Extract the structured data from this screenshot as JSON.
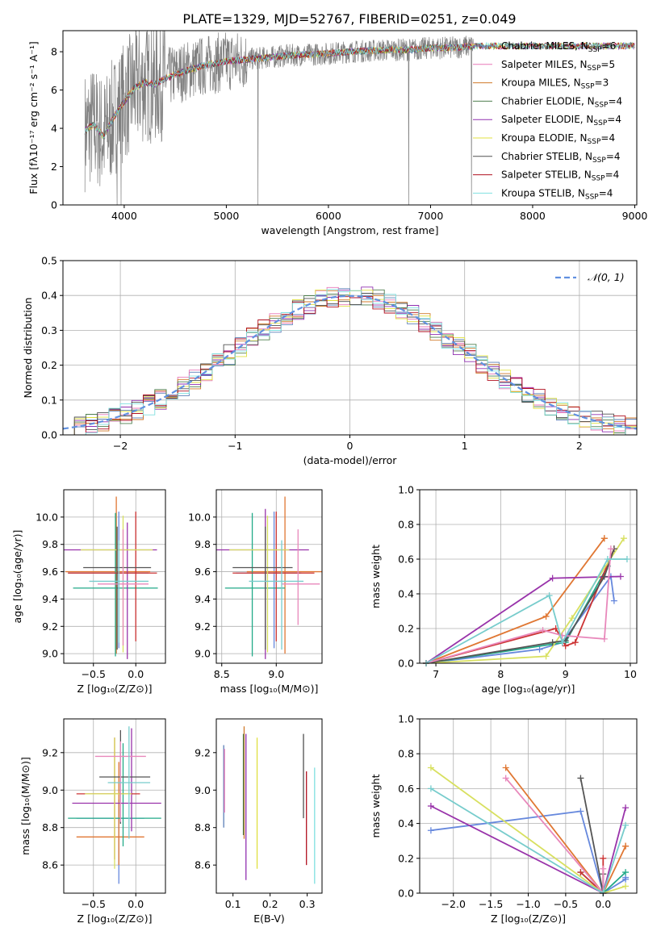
{
  "figure_title": "PLATE=1329, MJD=52767, FIBERID=0251, z=0.049",
  "colors": {
    "data": "#808080",
    "models": [
      "#5b7fb8",
      "#e878b8",
      "#d07a2a",
      "#4f7f4f",
      "#9030b0",
      "#e0e040",
      "#505050",
      "#b01020",
      "#80e0e0"
    ],
    "summary": [
      "#6688dd",
      "#e07733",
      "#22aa88",
      "#9933aa",
      "#cc3333",
      "#d8e060",
      "#555555",
      "#e888bb",
      "#77cccc"
    ],
    "normal_curve": "#6090e0"
  },
  "spectrum_legend": [
    {
      "main": "Chabrier MILES, N",
      "sub": "SSP",
      "tail": "=6"
    },
    {
      "main": "Salpeter MILES, N",
      "sub": "SSP",
      "tail": "=5"
    },
    {
      "main": "Kroupa MILES, N",
      "sub": "SSP",
      "tail": "=3"
    },
    {
      "main": "Chabrier ELODIE, N",
      "sub": "SSP",
      "tail": "=4"
    },
    {
      "main": "Salpeter ELODIE, N",
      "sub": "SSP",
      "tail": "=4"
    },
    {
      "main": "Kroupa ELODIE, N",
      "sub": "SSP",
      "tail": "=4"
    },
    {
      "main": "Chabrier STELIB, N",
      "sub": "SSP",
      "tail": "=4"
    },
    {
      "main": "Salpeter STELIB, N",
      "sub": "SSP",
      "tail": "=4"
    },
    {
      "main": "Kroupa STELIB, N",
      "sub": "SSP",
      "tail": "=4"
    }
  ],
  "chart_data": [
    {
      "id": "spectrum",
      "type": "line",
      "title": "PLATE=1329, MJD=52767, FIBERID=0251, z=0.049",
      "xlabel": "wavelength [Angstrom, rest frame]",
      "ylabel": "Flux [fλ10⁻¹⁷ erg cm⁻² s⁻¹ A⁻¹]",
      "xlim": [
        3400,
        9020
      ],
      "ylim": [
        0,
        9.1
      ],
      "xticks": [
        4000,
        5000,
        6000,
        7000,
        8000,
        9000
      ],
      "yticks": [
        0,
        2,
        4,
        6,
        8
      ],
      "legend_loc": "right",
      "continuum": {
        "x": [
          3600,
          3700,
          3800,
          3900,
          4000,
          4100,
          4200,
          4300,
          4400,
          4600,
          4800,
          5000,
          5200,
          5400,
          5600,
          5800,
          6000,
          6200,
          6400,
          6600,
          6800,
          7000,
          7200,
          7400
        ],
        "y": [
          3.8,
          4.2,
          3.6,
          4.6,
          5.4,
          6.1,
          6.4,
          6.3,
          6.6,
          7.0,
          7.3,
          7.5,
          7.6,
          7.7,
          7.8,
          7.85,
          7.9,
          8.0,
          8.05,
          8.1,
          8.1,
          8.2,
          8.2,
          8.3
        ]
      },
      "data_range": [
        3615,
        7420
      ],
      "model_range": [
        3615,
        9000
      ],
      "spikes": [
        {
          "x": 3930,
          "y": 0.0
        },
        {
          "x": 3970,
          "y": 0.0
        },
        {
          "x": 5310,
          "y": 0.0
        },
        {
          "x": 6785,
          "y": 0.0
        },
        {
          "x": 7400,
          "y": 0.0
        }
      ],
      "series": [
        {
          "name": "Chabrier MILES, N_SSP=6"
        },
        {
          "name": "Salpeter MILES, N_SSP=5"
        },
        {
          "name": "Kroupa MILES, N_SSP=3"
        },
        {
          "name": "Chabrier ELODIE, N_SSP=4"
        },
        {
          "name": "Salpeter ELODIE, N_SSP=4"
        },
        {
          "name": "Kroupa ELODIE, N_SSP=4"
        },
        {
          "name": "Chabrier STELIB, N_SSP=4"
        },
        {
          "name": "Salpeter STELIB, N_SSP=4"
        },
        {
          "name": "Kroupa STELIB, N_SSP=4"
        }
      ]
    },
    {
      "id": "residuals",
      "type": "line",
      "xlabel": "(data-model)/error",
      "ylabel": "Normed distribution",
      "xlim": [
        -2.5,
        2.5
      ],
      "ylim": [
        0,
        0.5
      ],
      "xticks": [
        -2,
        -1,
        0,
        1,
        2
      ],
      "yticks": [
        0,
        0.1,
        0.2,
        0.3,
        0.4,
        0.5
      ],
      "grid": true,
      "bin_width": 0.1,
      "legend": "𝒩(0, 1)",
      "legend_loc": "top-right"
    },
    {
      "id": "age_vs_Z",
      "type": "scatter",
      "xlabel": "Z [log₁₀(Z/Z⊙)]",
      "ylabel": "age  [log₁₀(age/yr)]",
      "xlim": [
        -0.85,
        0.35
      ],
      "ylim": [
        8.93,
        10.2
      ],
      "xticks": [
        -0.5,
        0.0
      ],
      "yticks": [
        9.0,
        9.2,
        9.4,
        9.6,
        9.8,
        10.0
      ],
      "grid": true,
      "errorbars": [
        {
          "x": -0.2,
          "y": 9.59,
          "xerr": [
            0.6,
            0.35
          ],
          "yerr": [
            0.55,
            0.45
          ]
        },
        {
          "x": -0.23,
          "y": 9.6,
          "xerr": [
            0.6,
            0.4
          ],
          "yerr": [
            0.6,
            0.55
          ]
        },
        {
          "x": -0.24,
          "y": 9.48,
          "xerr": [
            0.5,
            0.5
          ],
          "yerr": [
            0.5,
            0.55
          ]
        },
        {
          "x": -0.1,
          "y": 9.76,
          "xerr": [
            0.75,
            0.35
          ],
          "yerr": [
            0.8,
            0.2
          ]
        },
        {
          "x": 0.0,
          "y": 9.59,
          "xerr": [
            0.8,
            0.25
          ],
          "yerr": [
            0.5,
            0.45
          ]
        },
        {
          "x": -0.15,
          "y": 9.76,
          "xerr": [
            0.5,
            0.35
          ],
          "yerr": [
            0.75,
            0.25
          ]
        },
        {
          "x": -0.22,
          "y": 9.63,
          "xerr": [
            0.4,
            0.4
          ],
          "yerr": [
            0.6,
            0.3
          ]
        },
        {
          "x": -0.15,
          "y": 9.51,
          "xerr": [
            0.3,
            0.3
          ],
          "yerr": [
            0.45,
            0.4
          ]
        },
        {
          "x": -0.2,
          "y": 9.53,
          "xerr": [
            0.35,
            0.35
          ],
          "yerr": [
            0.45,
            0.3
          ]
        }
      ]
    },
    {
      "id": "age_vs_mass",
      "type": "scatter",
      "xlabel": "mass [log₁₀(M/M⊙)]",
      "xlim": [
        8.45,
        9.42
      ],
      "ylim": [
        8.93,
        10.2
      ],
      "xticks": [
        8.5,
        9.0
      ],
      "yticks": [
        9.0,
        9.2,
        9.4,
        9.6,
        9.8,
        10.0
      ],
      "grid": true,
      "errorbars": [
        {
          "x": 8.98,
          "y": 9.59,
          "xerr": [
            0.35,
            0.25
          ],
          "yerr": [
            0.55,
            0.45
          ]
        },
        {
          "x": 9.08,
          "y": 9.6,
          "xerr": [
            0.35,
            0.35
          ],
          "yerr": [
            0.6,
            0.55
          ]
        },
        {
          "x": 8.78,
          "y": 9.48,
          "xerr": [
            0.25,
            0.3
          ],
          "yerr": [
            0.5,
            0.55
          ]
        },
        {
          "x": 8.9,
          "y": 9.76,
          "xerr": [
            0.45,
            0.4
          ],
          "yerr": [
            0.8,
            0.3
          ]
        },
        {
          "x": 9.0,
          "y": 9.59,
          "xerr": [
            0.4,
            0.35
          ],
          "yerr": [
            0.5,
            0.45
          ]
        },
        {
          "x": 8.92,
          "y": 9.76,
          "xerr": [
            0.35,
            0.2
          ],
          "yerr": [
            0.75,
            0.25
          ]
        },
        {
          "x": 8.9,
          "y": 9.63,
          "xerr": [
            0.3,
            0.25
          ],
          "yerr": [
            0.6,
            0.3
          ]
        },
        {
          "x": 9.2,
          "y": 9.51,
          "xerr": [
            0.15,
            0.2
          ],
          "yerr": [
            0.3,
            0.4
          ]
        },
        {
          "x": 9.05,
          "y": 9.53,
          "xerr": [
            0.3,
            0.2
          ],
          "yerr": [
            0.5,
            0.3
          ]
        }
      ]
    },
    {
      "id": "mass_weight_vs_age",
      "type": "line",
      "xlabel": "age  [log₁₀(age/yr)]",
      "ylabel": "mass weight",
      "xlim": [
        6.75,
        10.1
      ],
      "ylim": [
        0,
        1.0
      ],
      "xticks": [
        7,
        8,
        9,
        10
      ],
      "yticks": [
        0,
        0.2,
        0.4,
        0.6,
        0.8,
        1.0
      ],
      "grid": true,
      "series": [
        {
          "x": [
            6.85,
            8.6,
            8.95,
            9.7,
            9.75
          ],
          "y": [
            0.0,
            0.08,
            0.12,
            0.5,
            0.36
          ]
        },
        {
          "x": [
            6.85,
            8.7,
            9.6,
            9.6
          ],
          "y": [
            0.0,
            0.27,
            0.72,
            0.72
          ]
        },
        {
          "x": [
            6.85,
            8.8,
            9.0,
            9.65
          ],
          "y": [
            0.0,
            0.11,
            0.12,
            0.56
          ]
        },
        {
          "x": [
            6.85,
            8.8,
            9.85
          ],
          "y": [
            0.0,
            0.49,
            0.5
          ]
        },
        {
          "x": [
            6.85,
            8.85,
            9.0,
            9.15,
            9.75
          ],
          "y": [
            0.0,
            0.2,
            0.1,
            0.12,
            0.66
          ]
        },
        {
          "x": [
            6.85,
            8.7,
            9.1,
            9.9
          ],
          "y": [
            0.0,
            0.04,
            0.26,
            0.72
          ]
        },
        {
          "x": [
            6.85,
            8.8,
            9.0,
            9.6,
            9.75
          ],
          "y": [
            0.0,
            0.12,
            0.13,
            0.5,
            0.66
          ]
        },
        {
          "x": [
            6.85,
            8.65,
            8.95,
            9.6,
            9.7
          ],
          "y": [
            0.0,
            0.19,
            0.16,
            0.14,
            0.66
          ]
        },
        {
          "x": [
            6.85,
            8.75,
            8.95,
            9.65,
            9.95
          ],
          "y": [
            0.0,
            0.39,
            0.12,
            0.6,
            0.6
          ]
        }
      ]
    },
    {
      "id": "mass_vs_Z",
      "type": "scatter",
      "xlabel": "Z [log₁₀(Z/Z⊙)]",
      "ylabel": "mass [log₁₀(M/M⊙)]",
      "xlim": [
        -0.85,
        0.35
      ],
      "ylim": [
        8.45,
        9.38
      ],
      "xticks": [
        -0.5,
        0.0
      ],
      "yticks": [
        8.6,
        8.8,
        9.0,
        9.2
      ],
      "grid": true,
      "errorbars": [
        {
          "x": -0.2,
          "y": 8.85,
          "xerr": [
            0.5,
            0.3
          ],
          "yerr": [
            0.35,
            0.1
          ]
        },
        {
          "x": -0.2,
          "y": 8.75,
          "xerr": [
            0.5,
            0.3
          ],
          "yerr": [
            0.15,
            0.4
          ]
        },
        {
          "x": -0.15,
          "y": 8.85,
          "xerr": [
            0.65,
            0.45
          ],
          "yerr": [
            0.15,
            0.4
          ]
        },
        {
          "x": -0.05,
          "y": 8.93,
          "xerr": [
            0.7,
            0.35
          ],
          "yerr": [
            0.15,
            0.4
          ]
        },
        {
          "x": -0.25,
          "y": 8.98,
          "xerr": [
            0.45,
            0.3
          ],
          "yerr": [
            0.35,
            0.3
          ]
        },
        {
          "x": -0.25,
          "y": 8.98,
          "xerr": [
            0.35,
            0.2
          ],
          "yerr": [
            0.4,
            0.3
          ]
        },
        {
          "x": -0.18,
          "y": 9.07,
          "xerr": [
            0.25,
            0.35
          ],
          "yerr": [
            0.25,
            0.25
          ]
        },
        {
          "x": -0.18,
          "y": 9.18,
          "xerr": [
            0.3,
            0.3
          ],
          "yerr": [
            0.35,
            0.08
          ]
        },
        {
          "x": -0.08,
          "y": 9.04,
          "xerr": [
            0.25,
            0.25
          ],
          "yerr": [
            0.3,
            0.3
          ]
        }
      ]
    },
    {
      "id": "mass_vs_EBV",
      "type": "scatter",
      "xlabel": "E(B-V)",
      "xlim": [
        0.055,
        0.34
      ],
      "ylim": [
        8.45,
        9.38
      ],
      "xticks": [
        0.1,
        0.2,
        0.3
      ],
      "yticks": [
        8.6,
        8.8,
        9.0,
        9.2
      ],
      "grid": false,
      "segments": [
        {
          "x": 0.075,
          "y0": 8.8,
          "y1": 9.24
        },
        {
          "x": 0.077,
          "y0": 8.88,
          "y1": 9.22
        },
        {
          "x": 0.13,
          "y0": 8.74,
          "y1": 9.34
        },
        {
          "x": 0.128,
          "y0": 8.76,
          "y1": 9.3
        },
        {
          "x": 0.135,
          "y0": 8.52,
          "y1": 9.3
        },
        {
          "x": 0.165,
          "y0": 8.58,
          "y1": 9.28
        },
        {
          "x": 0.29,
          "y0": 8.85,
          "y1": 9.3
        },
        {
          "x": 0.298,
          "y0": 8.6,
          "y1": 9.1
        },
        {
          "x": 0.32,
          "y0": 8.5,
          "y1": 9.12
        }
      ]
    },
    {
      "id": "mass_weight_vs_Z",
      "type": "line",
      "xlabel": "Z [log₁₀(Z/Z⊙)]",
      "ylabel": "mass weight",
      "xlim": [
        -2.45,
        0.45
      ],
      "ylim": [
        0,
        1.0
      ],
      "xticks": [
        -2.0,
        -1.5,
        -1.0,
        -0.5,
        0.0
      ],
      "yticks": [
        0,
        0.2,
        0.4,
        0.6,
        0.8,
        1.0
      ],
      "grid": true,
      "series": [
        {
          "x": [
            -2.3,
            -0.3,
            0.0,
            0.3,
            0.3
          ],
          "y": [
            0.36,
            0.47,
            0.0,
            0.08,
            0.09
          ]
        },
        {
          "x": [
            -1.3,
            0.0,
            0.3,
            0.3
          ],
          "y": [
            0.72,
            0.0,
            0.27,
            0.27
          ]
        },
        {
          "x": [
            -0.3,
            0.0,
            0.3
          ],
          "y": [
            0.12,
            0.0,
            0.12
          ]
        },
        {
          "x": [
            -2.3,
            0.0,
            0.3
          ],
          "y": [
            0.5,
            0.0,
            0.49
          ]
        },
        {
          "x": [
            -0.3,
            0.0,
            0.0
          ],
          "y": [
            0.12,
            0.0,
            0.2
          ]
        },
        {
          "x": [
            -2.3,
            0.0,
            0.3
          ],
          "y": [
            0.72,
            0.0,
            0.04
          ]
        },
        {
          "x": [
            -0.3,
            0.0,
            0.0
          ],
          "y": [
            0.66,
            0.0,
            0.11
          ]
        },
        {
          "x": [
            -1.3,
            0.0,
            0.0
          ],
          "y": [
            0.66,
            0.0,
            0.14
          ]
        },
        {
          "x": [
            -2.3,
            0.0,
            0.3
          ],
          "y": [
            0.6,
            0.0,
            0.39
          ]
        }
      ]
    }
  ]
}
